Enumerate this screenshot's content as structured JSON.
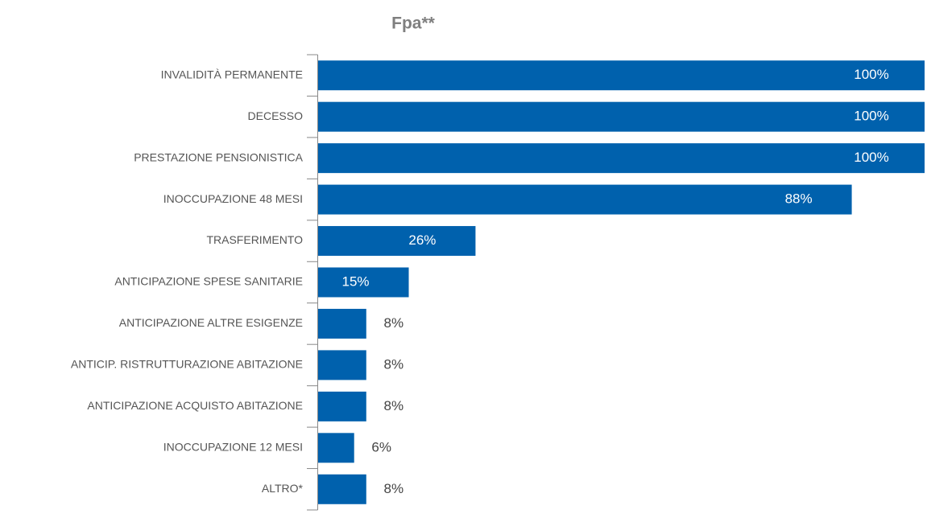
{
  "chart_data": {
    "type": "hbar",
    "title": "Fpa**",
    "categories": [
      "INVALIDITÀ PERMANENTE",
      "DECESSO",
      "PRESTAZIONE PENSIONISTICA",
      "INOCCUPAZIONE 48 MESI",
      "TRASFERIMENTO",
      "ANTICIPAZIONE SPESE SANITARIE",
      "ANTICIPAZIONE ALTRE ESIGENZE",
      "ANTICIP. RISTRUTTURAZIONE ABITAZIONE",
      "ANTICIPAZIONE ACQUISTO ABITAZIONE",
      "INOCCUPAZIONE 12 MESI",
      "ALTRO*"
    ],
    "values": [
      100,
      100,
      100,
      88,
      26,
      15,
      8,
      8,
      8,
      6,
      8
    ],
    "value_labels": [
      "100%",
      "100%",
      "100%",
      "88%",
      "26%",
      "15%",
      "8%",
      "8%",
      "8%",
      "6%",
      "8%"
    ],
    "color": "#0061ad"
  }
}
